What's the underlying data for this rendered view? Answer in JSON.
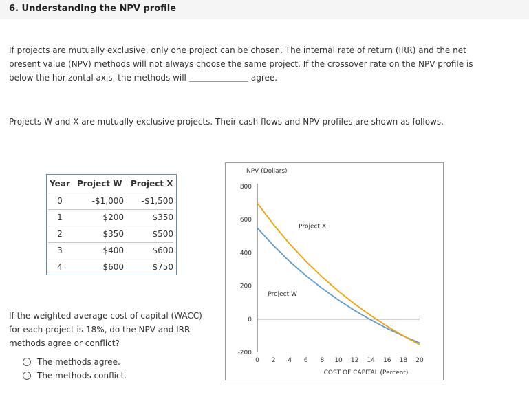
{
  "heading": "6. Understanding the NPV profile",
  "intro": {
    "line1": "If projects are mutually exclusive, only one project can be chosen. The internal rate of return (IRR) and the net",
    "line2": "present value (NPV) methods will not always choose the same project. If the crossover rate on the NPV profile is",
    "line3_before": "below the horizontal axis, the methods will",
    "line3_after": "agree."
  },
  "projects_text": "Projects W and X are mutually exclusive projects. Their cash flows and NPV profiles are shown as follows.",
  "table": {
    "headers": [
      "Year",
      "Project W",
      "Project X"
    ],
    "rows": [
      {
        "year": "0",
        "w": "-$1,000",
        "x": "-$1,500"
      },
      {
        "year": "1",
        "w": "$200",
        "x": "$350"
      },
      {
        "year": "2",
        "w": "$350",
        "x": "$500"
      },
      {
        "year": "3",
        "w": "$400",
        "x": "$600"
      },
      {
        "year": "4",
        "w": "$600",
        "x": "$750"
      }
    ]
  },
  "question": {
    "line1": "If the weighted average cost of capital (WACC)",
    "line2": "for each project is 18%, do the NPV and IRR",
    "line3": "methods agree or conflict?"
  },
  "options": {
    "agree": "The methods agree.",
    "conflict": "The methods conflict."
  },
  "colors": {
    "project_w": "#5b9bd5",
    "project_x": "#f5a000",
    "axis": "#555555"
  },
  "chart_data": {
    "type": "line",
    "title": "",
    "ylabel": "NPV (Dollars)",
    "xlabel": "COST OF CAPITAL (Percent)",
    "xlim": [
      0,
      20
    ],
    "ylim": [
      -200,
      800
    ],
    "xticks": [
      0,
      2,
      4,
      6,
      8,
      10,
      12,
      14,
      16,
      18,
      20
    ],
    "yticks": [
      800,
      600,
      400,
      200,
      0,
      -200
    ],
    "series": [
      {
        "name": "Project W",
        "color": "#5b9bd5",
        "x": [
          0,
          2,
          4,
          6,
          8,
          10,
          12,
          14,
          16,
          18,
          20
        ],
        "y": [
          550,
          443,
          347,
          262,
          185,
          115,
          52,
          -5,
          -56,
          -102,
          -144
        ]
      },
      {
        "name": "Project X",
        "color": "#f5a000",
        "x": [
          0,
          2,
          4,
          6,
          8,
          10,
          12,
          14,
          16,
          18,
          20
        ],
        "y": [
          700,
          570,
          453,
          348,
          254,
          168,
          91,
          21,
          -43,
          -101,
          -154
        ]
      }
    ]
  }
}
